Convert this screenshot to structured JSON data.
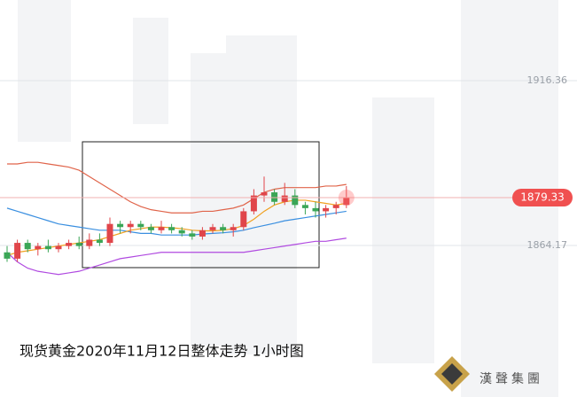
{
  "chart_data": {
    "type": "candlestick",
    "caption": "现货黄金2020年11月12日整体走势 1小时图",
    "logo": "漢聲集團",
    "ylim": [
      1816.2,
      1941.9
    ],
    "yticks": [
      1916.36,
      1864.17
    ],
    "last_price": 1879.33,
    "up_color": "#e0454a",
    "down_color": "#3aa656",
    "candles": [
      {
        "open": 1862,
        "high": 1864,
        "low": 1859,
        "close": 1860
      },
      {
        "open": 1860,
        "high": 1866,
        "low": 1859,
        "close": 1865
      },
      {
        "open": 1865,
        "high": 1866,
        "low": 1862,
        "close": 1863
      },
      {
        "open": 1863,
        "high": 1865,
        "low": 1861,
        "close": 1864
      },
      {
        "open": 1864,
        "high": 1866,
        "low": 1862,
        "close": 1863
      },
      {
        "open": 1863,
        "high": 1865,
        "low": 1862,
        "close": 1864
      },
      {
        "open": 1864,
        "high": 1866,
        "low": 1863,
        "close": 1865
      },
      {
        "open": 1865,
        "high": 1867,
        "low": 1863,
        "close": 1864
      },
      {
        "open": 1864,
        "high": 1868,
        "low": 1863,
        "close": 1866
      },
      {
        "open": 1866,
        "high": 1868,
        "low": 1864,
        "close": 1865
      },
      {
        "open": 1865,
        "high": 1873,
        "low": 1864,
        "close": 1871
      },
      {
        "open": 1871,
        "high": 1872,
        "low": 1868,
        "close": 1870
      },
      {
        "open": 1870,
        "high": 1872,
        "low": 1868,
        "close": 1871
      },
      {
        "open": 1871,
        "high": 1872,
        "low": 1869,
        "close": 1870
      },
      {
        "open": 1870,
        "high": 1871,
        "low": 1868,
        "close": 1869
      },
      {
        "open": 1869,
        "high": 1872,
        "low": 1868,
        "close": 1870
      },
      {
        "open": 1870,
        "high": 1871,
        "low": 1868,
        "close": 1869
      },
      {
        "open": 1869,
        "high": 1870,
        "low": 1867,
        "close": 1868
      },
      {
        "open": 1868,
        "high": 1869,
        "low": 1866,
        "close": 1867
      },
      {
        "open": 1867,
        "high": 1870,
        "low": 1866,
        "close": 1869
      },
      {
        "open": 1869,
        "high": 1871,
        "low": 1868,
        "close": 1870
      },
      {
        "open": 1870,
        "high": 1871,
        "low": 1868,
        "close": 1869
      },
      {
        "open": 1869,
        "high": 1871,
        "low": 1867,
        "close": 1870
      },
      {
        "open": 1870,
        "high": 1876,
        "low": 1869,
        "close": 1875
      },
      {
        "open": 1875,
        "high": 1882,
        "low": 1874,
        "close": 1880
      },
      {
        "open": 1880,
        "high": 1886,
        "low": 1878,
        "close": 1881
      },
      {
        "open": 1881,
        "high": 1882,
        "low": 1877,
        "close": 1878
      },
      {
        "open": 1878,
        "high": 1884,
        "low": 1877,
        "close": 1880
      },
      {
        "open": 1880,
        "high": 1882,
        "low": 1876,
        "close": 1877
      },
      {
        "open": 1877,
        "high": 1878,
        "low": 1874,
        "close": 1876
      },
      {
        "open": 1876,
        "high": 1878,
        "low": 1873,
        "close": 1875
      },
      {
        "open": 1875,
        "high": 1877,
        "low": 1873,
        "close": 1876
      },
      {
        "open": 1876,
        "high": 1878,
        "low": 1874,
        "close": 1877
      },
      {
        "open": 1877,
        "high": 1883,
        "low": 1876,
        "close": 1879.33
      }
    ],
    "series": [
      {
        "color": "#e0644a",
        "values": [
          1890,
          1890,
          1890.5,
          1890.5,
          1890,
          1889.5,
          1889,
          1888,
          1886,
          1884,
          1882,
          1880,
          1878,
          1876.5,
          1875.5,
          1875,
          1874.5,
          1874.5,
          1874.5,
          1875,
          1875,
          1875.5,
          1876,
          1877,
          1879,
          1881,
          1882,
          1882.5,
          1882.5,
          1882.5,
          1882.5,
          1883,
          1883,
          1883.5
        ]
      },
      {
        "color": "#3a8fe0",
        "values": [
          1876,
          1875,
          1874,
          1873,
          1872,
          1871,
          1870.5,
          1870,
          1869.5,
          1869,
          1869,
          1869,
          1868.5,
          1868,
          1868,
          1867.5,
          1867.5,
          1867.5,
          1867.5,
          1867.8,
          1868,
          1868.2,
          1868.5,
          1869,
          1869.8,
          1870.5,
          1871.2,
          1872,
          1872.5,
          1873,
          1873.5,
          1874,
          1874.5,
          1875
        ]
      },
      {
        "color": "#b04ae0",
        "values": [
          1862,
          1859,
          1857,
          1856,
          1855.5,
          1855,
          1855.5,
          1856,
          1857,
          1858,
          1859,
          1860,
          1860.5,
          1861,
          1861.5,
          1862,
          1862,
          1862,
          1862,
          1862,
          1862,
          1862,
          1862,
          1862,
          1862.5,
          1863,
          1863.5,
          1864,
          1864.5,
          1865,
          1865.5,
          1865.5,
          1866,
          1866.5
        ]
      },
      {
        "color": "#f0a020",
        "values": [
          1861,
          1862,
          1862.5,
          1863,
          1863.5,
          1864,
          1864.5,
          1865,
          1865.5,
          1866,
          1867,
          1868,
          1869,
          1869.5,
          1870,
          1870,
          1869.8,
          1869.5,
          1869,
          1868.8,
          1868.8,
          1869,
          1869.5,
          1870.5,
          1872.5,
          1875,
          1877,
          1878,
          1878.5,
          1878.5,
          1878,
          1877.5,
          1877,
          1877.5
        ]
      }
    ]
  }
}
